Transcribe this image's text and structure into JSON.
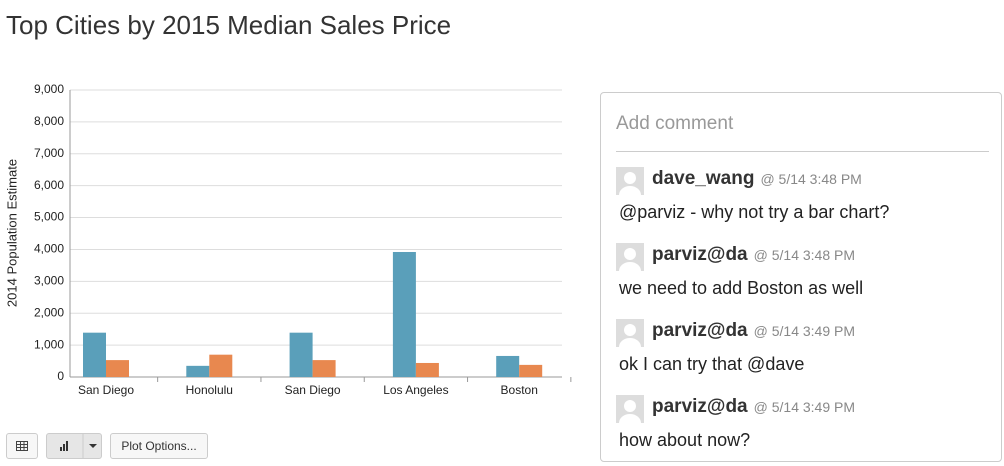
{
  "header": {
    "title": "Top Cities by 2015 Median Sales Price"
  },
  "chart_data": {
    "type": "bar",
    "y_label": "2014 Population Estimate",
    "categories": [
      "San Diego",
      "Honolulu",
      "San Diego",
      "Los Angeles",
      "Boston"
    ],
    "series": [
      {
        "color": "#5a9fba",
        "values": [
          1390,
          350,
          1390,
          3920,
          660
        ]
      },
      {
        "color": "#e8884f",
        "values": [
          530,
          700,
          530,
          440,
          380
        ]
      }
    ],
    "ylim": [
      0,
      9000
    ],
    "yticks": [
      0,
      {
        "value": 1000,
        "label": "1,000"
      },
      {
        "value": 2000,
        "label": "2,000"
      },
      {
        "value": 3000,
        "label": "3,000"
      },
      {
        "value": 4000,
        "label": "4,000"
      },
      {
        "value": 5000,
        "label": "5,000"
      },
      {
        "value": 6000,
        "label": "6,000"
      },
      {
        "value": 7000,
        "label": "7,000"
      },
      {
        "value": 8000,
        "label": "8,000"
      },
      {
        "value": 9000,
        "label": "9,000"
      }
    ],
    "grid": true
  },
  "toolbar": {
    "plot_options": "Plot Options..."
  },
  "comments": {
    "placeholder": "Add comment",
    "items": [
      {
        "user": "dave_wang",
        "time": "@ 5/14 3:48 PM",
        "text": "@parviz - why not try a bar chart?"
      },
      {
        "user": "parviz@da",
        "time": "@ 5/14 3:48 PM",
        "text": "we need to add Boston as well"
      },
      {
        "user": "parviz@da",
        "time": "@ 5/14 3:49 PM",
        "text": "ok I can try that @dave"
      },
      {
        "user": "parviz@da",
        "time": "@ 5/14 3:49 PM",
        "text": "how about now?"
      }
    ]
  }
}
